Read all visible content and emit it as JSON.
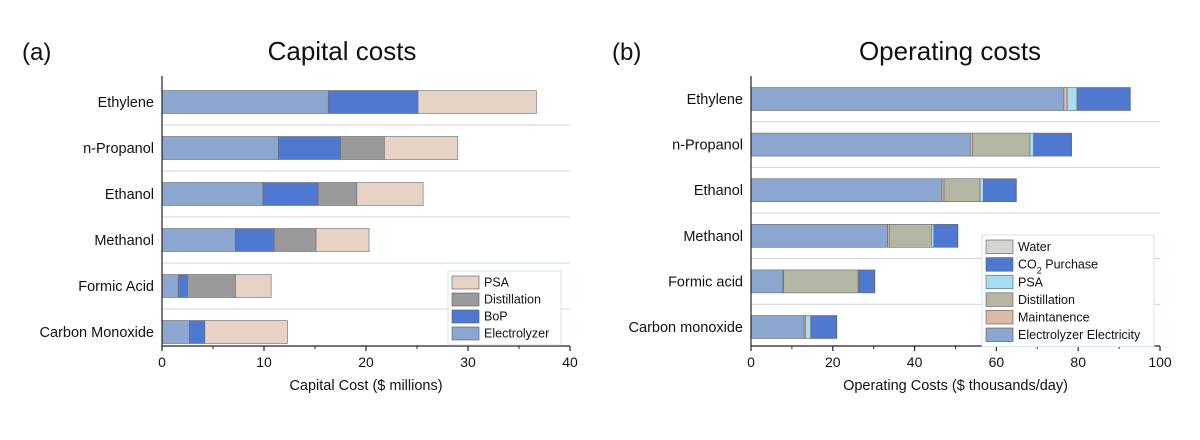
{
  "chart_data": [
    {
      "type": "bar",
      "orientation": "horizontal",
      "stacked": true,
      "panel_label": "(a)",
      "title": "Capital costs",
      "xlabel": "Capital Cost ($ millions)",
      "ylabel": "",
      "xlim": [
        0,
        40
      ],
      "xticks": [
        0,
        10,
        20,
        30,
        40
      ],
      "categories": [
        "Ethylene",
        "n-Propanol",
        "Ethanol",
        "Methanol",
        "Formic Acid",
        "Carbon Monoxide"
      ],
      "series": [
        {
          "name": "Electrolyzer",
          "color": "#8ba6cf",
          "values": [
            16.3,
            11.4,
            9.9,
            7.2,
            1.6,
            2.7
          ]
        },
        {
          "name": "BoP",
          "color": "#4f79d0",
          "values": [
            8.8,
            6.1,
            5.4,
            3.8,
            0.9,
            1.5
          ]
        },
        {
          "name": "Distillation",
          "color": "#9a9a9a",
          "values": [
            0,
            4.3,
            3.8,
            4.1,
            4.7,
            0
          ]
        },
        {
          "name": "PSA",
          "color": "#e6d3c5",
          "values": [
            11.6,
            7.2,
            6.5,
            5.2,
            3.5,
            8.1
          ]
        }
      ],
      "legend": {
        "position": "bottom-right",
        "order": [
          "PSA",
          "Distillation",
          "BoP",
          "Electrolyzer"
        ]
      }
    },
    {
      "type": "bar",
      "orientation": "horizontal",
      "stacked": true,
      "panel_label": "(b)",
      "title": "Operating costs",
      "xlabel": "Operating Costs ($ thousands/day)",
      "ylabel": "",
      "xlim": [
        0,
        100
      ],
      "xticks": [
        0,
        20,
        40,
        60,
        80,
        100
      ],
      "categories": [
        "Ethylene",
        "n-Propanol",
        "Ethanol",
        "Methanol",
        "Formic acid",
        "Carbon monoxide"
      ],
      "series": [
        {
          "name": "Electrolyzer Electricity",
          "color": "#8ba6cf",
          "values": [
            76.5,
            53.6,
            46.7,
            33.4,
            7.8,
            13.0
          ]
        },
        {
          "name": "Maintanence",
          "color": "#dcb8a8",
          "values": [
            0.8,
            0.6,
            0.5,
            0.4,
            0.2,
            0.3
          ]
        },
        {
          "name": "Distillation",
          "color": "#b5b5a4",
          "values": [
            0,
            14.0,
            8.8,
            10.3,
            18.2,
            0
          ]
        },
        {
          "name": "PSA",
          "color": "#a8dcf0",
          "values": [
            2.4,
            0.9,
            0.8,
            0.6,
            0.2,
            1.3
          ]
        },
        {
          "name": "CO2 Purchase",
          "label": "CO",
          "label_sub": "2",
          "label_rest": " Purchase",
          "color": "#4f79d0",
          "values": [
            12.9,
            9.2,
            8.0,
            5.8,
            3.8,
            6.3
          ]
        },
        {
          "name": "Water",
          "color": "#d4d4d1",
          "values": [
            0.2,
            0.1,
            0.1,
            0.1,
            0.1,
            0.1
          ]
        }
      ],
      "legend": {
        "position": "bottom-right",
        "order": [
          "Water",
          "CO2 Purchase",
          "PSA",
          "Distillation",
          "Maintanence",
          "Electrolyzer Electricity"
        ]
      }
    }
  ]
}
